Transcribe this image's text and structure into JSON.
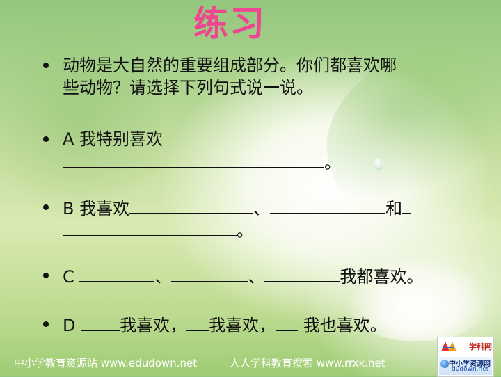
{
  "title": "练习",
  "items": [
    {
      "line1": "动物是大自然的重要组成部分。你们都喜欢哪",
      "line2": "些动物？请选择下列句式说一说。"
    },
    {
      "label": "A 我特别喜欢",
      "end": "。"
    },
    {
      "label": "B 我喜欢",
      "sep1": "、",
      "sep2": "和",
      "end": "。"
    },
    {
      "label": "C",
      "sep1": "、",
      "sep2": "、",
      "tail": "我都喜欢。"
    },
    {
      "label": "D",
      "part1": "我喜欢，",
      "part2": "我喜欢，",
      "tail": " 我也喜欢。"
    }
  ],
  "footer": {
    "left": "中小学教育资源站 www.edudown.net",
    "right": "人人学科教育搜索 www.rrxk.net"
  },
  "logos": {
    "top_label": "学科网",
    "bottom_label": "中小学资源网",
    "bottom_url": "dudown.net"
  },
  "colors": {
    "title": "#ee4690",
    "text": "#111111",
    "footer": "#ffffff"
  }
}
